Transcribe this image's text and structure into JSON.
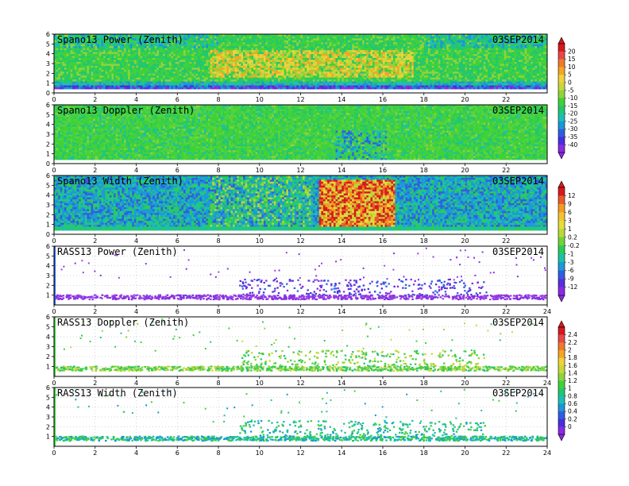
{
  "chart_data": [
    {
      "type": "heatmap",
      "title": "Spano13 Power (Zenith)",
      "date": "03SEP2014",
      "xlim": [
        0,
        24
      ],
      "x_ticks": [
        0,
        2,
        4,
        6,
        8,
        10,
        12,
        14,
        16,
        18,
        20,
        22
      ],
      "ylim": [
        0,
        6
      ],
      "y_ticks": [
        0,
        1,
        2,
        3,
        4,
        5,
        6
      ],
      "colorbar_group": 0,
      "grid": true
    },
    {
      "type": "heatmap",
      "title": "Spano13 Doppler (Zenith)",
      "date": "03SEP2014",
      "xlim": [
        0,
        24
      ],
      "x_ticks": [
        0,
        2,
        4,
        6,
        8,
        10,
        12,
        14,
        16,
        18,
        20,
        22
      ],
      "ylim": [
        0,
        6
      ],
      "y_ticks": [
        0,
        1,
        2,
        3,
        4,
        5,
        6
      ],
      "colorbar_group": 0,
      "grid": true
    },
    {
      "type": "heatmap",
      "title": "Spano13 Width (Zenith)",
      "date": "03SEP2014",
      "xlim": [
        0,
        24
      ],
      "x_ticks": [
        0,
        2,
        4,
        6,
        8,
        10,
        12,
        14,
        16,
        18,
        20,
        22
      ],
      "ylim": [
        0,
        6
      ],
      "y_ticks": [
        0,
        1,
        2,
        3,
        4,
        5,
        6
      ],
      "colorbar_group": 1,
      "grid": true
    },
    {
      "type": "scatter",
      "title": "RASS13 Power (Zenith)",
      "date": "03SEP2014",
      "xlim": [
        0,
        24
      ],
      "x_ticks": [
        0,
        2,
        4,
        6,
        8,
        10,
        12,
        14,
        16,
        18,
        20,
        22,
        24
      ],
      "ylim": [
        0,
        6
      ],
      "y_ticks": [
        1,
        2,
        3,
        4,
        5,
        6
      ],
      "colorbar_group": 1,
      "grid": true
    },
    {
      "type": "scatter",
      "title": "RASS13 Doppler (Zenith)",
      "date": "03SEP2014",
      "xlim": [
        0,
        24
      ],
      "x_ticks": [
        0,
        2,
        4,
        6,
        8,
        10,
        12,
        14,
        16,
        18,
        20,
        22,
        24
      ],
      "ylim": [
        0,
        6
      ],
      "y_ticks": [
        1,
        2,
        3,
        4,
        5,
        6
      ],
      "colorbar_group": 2,
      "grid": true
    },
    {
      "type": "scatter",
      "title": "RASS13 Width (Zenith)",
      "date": "03SEP2014",
      "xlim": [
        0,
        24
      ],
      "x_ticks": [
        0,
        2,
        4,
        6,
        8,
        10,
        12,
        14,
        16,
        18,
        20,
        22,
        24
      ],
      "ylim": [
        0,
        6
      ],
      "y_ticks": [
        1,
        2,
        3,
        4,
        5,
        6
      ],
      "colorbar_group": 2,
      "grid": true
    }
  ],
  "colorbars": [
    {
      "labels": [
        "20",
        "15",
        "10",
        "5",
        "0",
        "-5",
        "-10",
        "-15",
        "-20",
        "-25",
        "-30",
        "-35",
        "-40"
      ],
      "colors": [
        "#d7191c",
        "#e8484a",
        "#f07a2c",
        "#f5a623",
        "#f2d23a",
        "#c8d83a",
        "#8fd43a",
        "#3fd23a",
        "#22c76e",
        "#1cbfb7",
        "#1a96d6",
        "#2f5fe0",
        "#4a2ee0",
        "#8a2be2"
      ]
    },
    {
      "labels": [
        "12",
        "9",
        "6",
        "3",
        "1",
        "0.2",
        "-0.2",
        "-1",
        "-3",
        "-6",
        "-9",
        "-12"
      ],
      "colors": [
        "#d7191c",
        "#ec5a2a",
        "#f59a23",
        "#f4c430",
        "#e5dd3a",
        "#b8d93a",
        "#6fd43a",
        "#28cd58",
        "#1cc2a6",
        "#1c9ad8",
        "#2f5fe0",
        "#5a2ee0",
        "#8a2be2"
      ]
    },
    {
      "labels": [
        "2.4",
        "2.2",
        "2",
        "1.8",
        "1.6",
        "1.4",
        "1.2",
        "1",
        "0.8",
        "0.6",
        "0.4",
        "0.2",
        "0"
      ],
      "colors": [
        "#d7191c",
        "#e8484a",
        "#f07a2c",
        "#f5a623",
        "#f2d23a",
        "#c8d83a",
        "#8fd43a",
        "#3fd23a",
        "#22c76e",
        "#1cbfb7",
        "#1a96d6",
        "#2f5fe0",
        "#4a2ee0",
        "#8a2be2"
      ]
    }
  ]
}
